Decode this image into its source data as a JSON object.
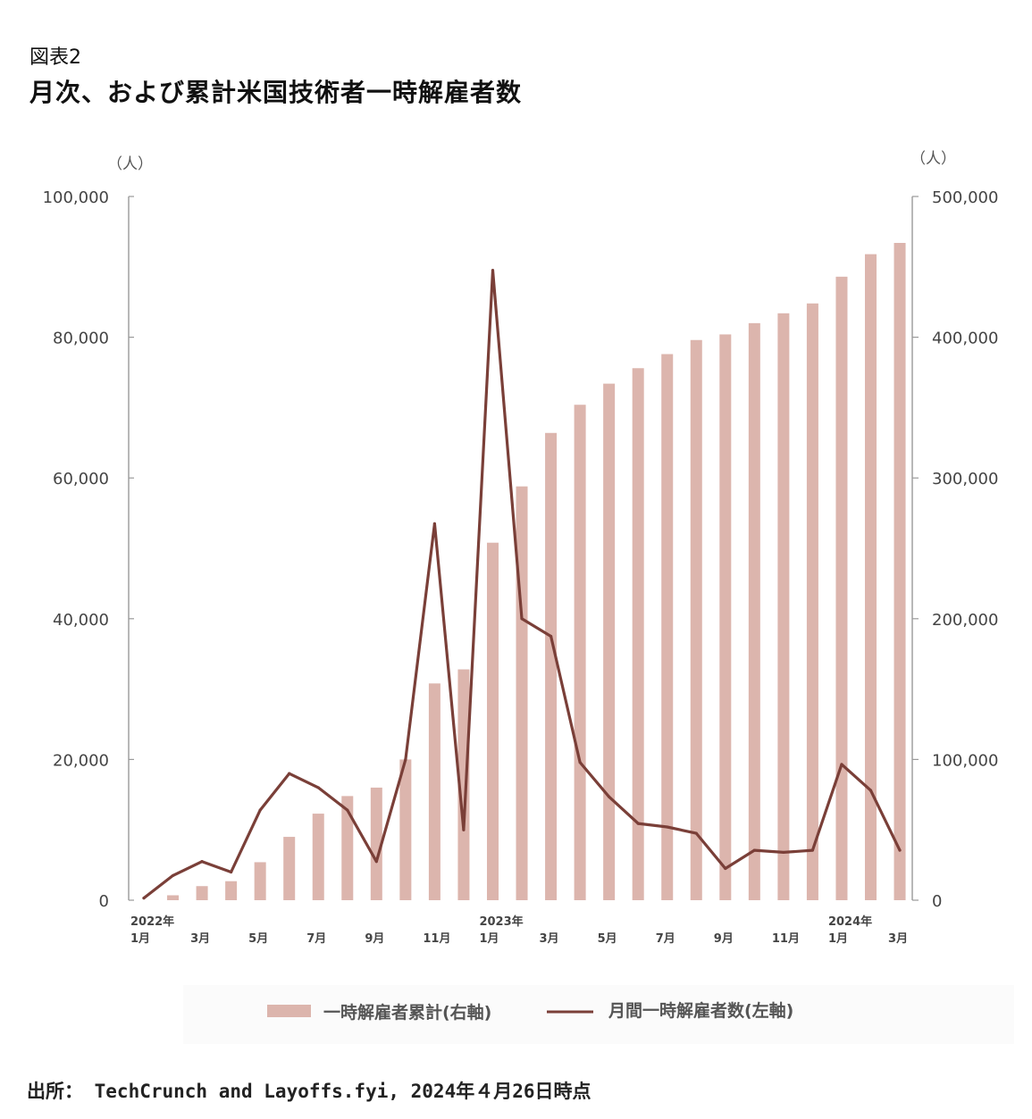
{
  "figure": {
    "label": "図表2",
    "title": "月次、および累計米国技術者一時解雇者数",
    "source": "出所： TechCrunch and Layoffs.fyi, 2024年４月26日時点"
  },
  "chart_data": {
    "type": "bar+line",
    "left_axis": {
      "unit": "（人）",
      "ylim": [
        0,
        100000
      ],
      "ticks": [
        "0",
        "20,000",
        "40,000",
        "60,000",
        "80,000",
        "100,000"
      ]
    },
    "right_axis": {
      "unit": "（人）",
      "ylim": [
        0,
        500000
      ],
      "ticks": [
        "0",
        "100,000",
        "200,000",
        "300,000",
        "400,000",
        "500,000"
      ]
    },
    "months": [
      "2022-01",
      "2022-02",
      "2022-03",
      "2022-04",
      "2022-05",
      "2022-06",
      "2022-07",
      "2022-08",
      "2022-09",
      "2022-10",
      "2022-11",
      "2022-12",
      "2023-01",
      "2023-02",
      "2023-03",
      "2023-04",
      "2023-05",
      "2023-06",
      "2023-07",
      "2023-08",
      "2023-09",
      "2023-10",
      "2023-11",
      "2023-12",
      "2024-01",
      "2024-02",
      "2024-03"
    ],
    "x_tick_labels": [
      {
        "index": 0,
        "year": "2022年",
        "month": "1月"
      },
      {
        "index": 2,
        "year": "",
        "month": "3月"
      },
      {
        "index": 4,
        "year": "",
        "month": "5月"
      },
      {
        "index": 6,
        "year": "",
        "month": "7月"
      },
      {
        "index": 8,
        "year": "",
        "month": "9月"
      },
      {
        "index": 10,
        "year": "",
        "month": "11月"
      },
      {
        "index": 12,
        "year": "2023年",
        "month": "1月"
      },
      {
        "index": 14,
        "year": "",
        "month": "3月"
      },
      {
        "index": 16,
        "year": "",
        "month": "5月"
      },
      {
        "index": 18,
        "year": "",
        "month": "7月"
      },
      {
        "index": 20,
        "year": "",
        "month": "9月"
      },
      {
        "index": 22,
        "year": "",
        "month": "11月"
      },
      {
        "index": 24,
        "year": "2024年",
        "month": "1月"
      },
      {
        "index": 26,
        "year": "",
        "month": "3月"
      }
    ],
    "series": [
      {
        "name": "一時解雇者累計(右軸)",
        "type": "bar",
        "axis": "right",
        "color": "#dcb5ad",
        "values": [
          0,
          3500,
          10000,
          13500,
          27000,
          45000,
          61500,
          74000,
          80000,
          100000,
          154000,
          164000,
          254000,
          294000,
          332000,
          352000,
          367000,
          378000,
          388000,
          398000,
          402000,
          410000,
          417000,
          424000,
          443000,
          459000,
          467000
        ]
      },
      {
        "name": "月間一時解雇者数(左軸)",
        "type": "line",
        "axis": "left",
        "color": "#7a3f38",
        "values": [
          300,
          3500,
          5500,
          4000,
          12800,
          18000,
          16000,
          12800,
          5500,
          20000,
          53500,
          10000,
          89500,
          40000,
          37500,
          19600,
          14700,
          10900,
          10400,
          9500,
          4500,
          7100,
          6800,
          7100,
          19300,
          15600,
          7100
        ]
      }
    ],
    "legend_position": "bottom",
    "grid": false
  }
}
